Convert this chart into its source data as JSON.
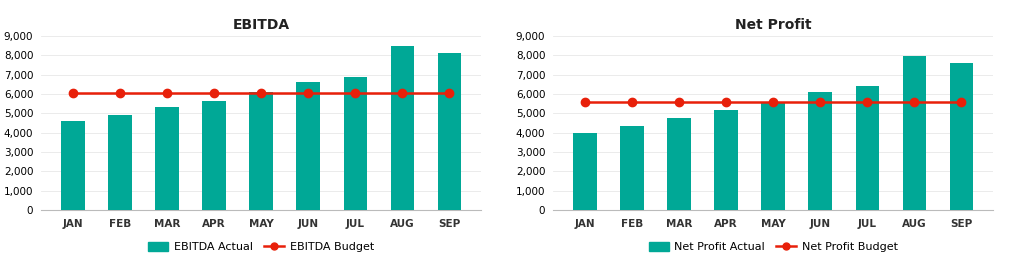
{
  "months": [
    "JAN",
    "FEB",
    "MAR",
    "APR",
    "MAY",
    "JUN",
    "JUL",
    "AUG",
    "SEP"
  ],
  "ebitda_actual": [
    4600,
    4900,
    5300,
    5650,
    6100,
    6600,
    6850,
    8450,
    8100
  ],
  "ebitda_budget": [
    6050,
    6050,
    6050,
    6050,
    6050,
    6050,
    6050,
    6050,
    6050
  ],
  "net_profit_actual": [
    4000,
    4350,
    4750,
    5150,
    5600,
    6100,
    6400,
    7950,
    7600
  ],
  "net_profit_budget": [
    5600,
    5600,
    5600,
    5600,
    5600,
    5600,
    5600,
    5600,
    5600
  ],
  "bar_color": "#00A896",
  "line_color": "#E8200A",
  "title_ebitda": "EBITDA",
  "title_net_profit": "Net Profit",
  "legend_actual_ebitda": "EBITDA Actual",
  "legend_budget_ebitda": "EBITDA Budget",
  "legend_actual_net": "Net Profit Actual",
  "legend_budget_net": "Net Profit Budget",
  "ylim": [
    0,
    9000
  ],
  "yticks": [
    0,
    1000,
    2000,
    3000,
    4000,
    5000,
    6000,
    7000,
    8000,
    9000
  ],
  "bg_color": "#FFFFFF",
  "title_fontsize": 10,
  "tick_fontsize": 7.5,
  "legend_fontsize": 8
}
